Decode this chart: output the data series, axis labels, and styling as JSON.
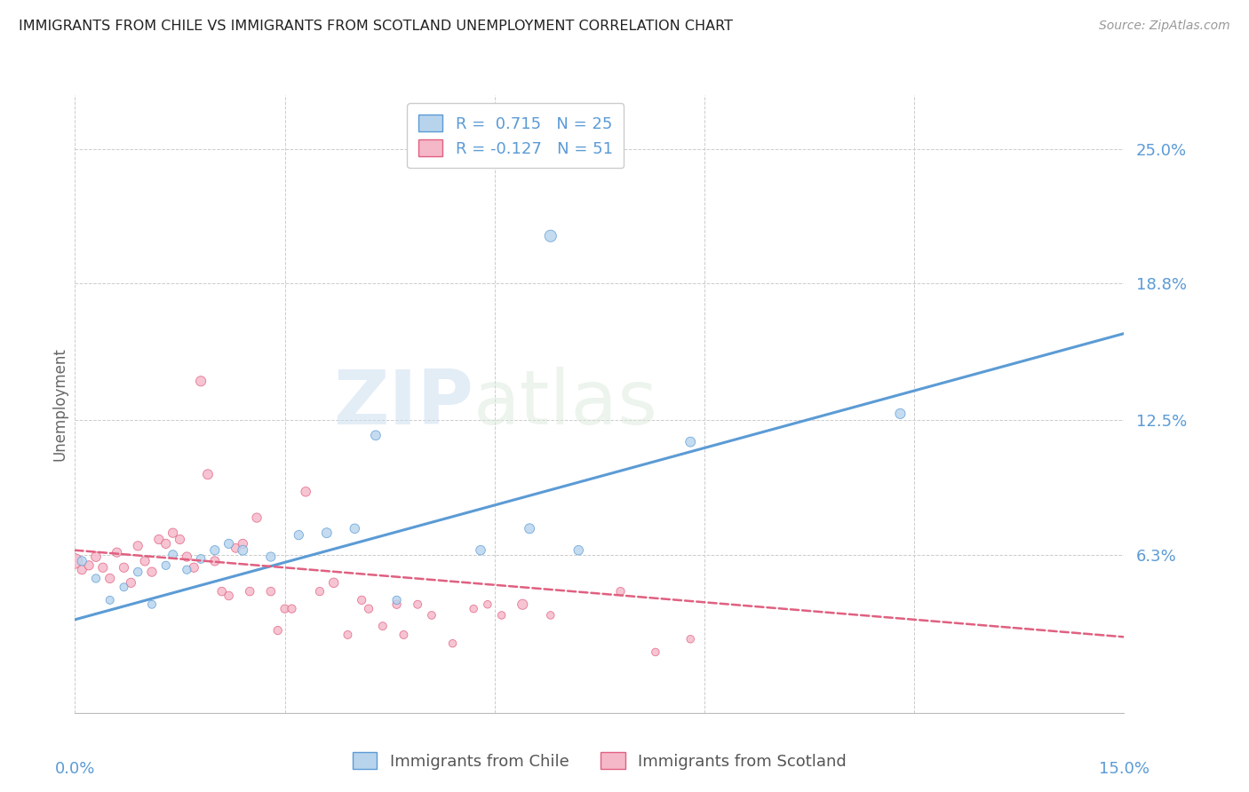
{
  "title": "IMMIGRANTS FROM CHILE VS IMMIGRANTS FROM SCOTLAND UNEMPLOYMENT CORRELATION CHART",
  "source": "Source: ZipAtlas.com",
  "ylabel": "Unemployment",
  "ytick_labels": [
    "25.0%",
    "18.8%",
    "12.5%",
    "6.3%"
  ],
  "ytick_values": [
    0.25,
    0.188,
    0.125,
    0.063
  ],
  "xlim": [
    0.0,
    0.15
  ],
  "ylim": [
    -0.01,
    0.275
  ],
  "chile_R": "0.715",
  "chile_N": "25",
  "scotland_R": "-0.127",
  "scotland_N": "51",
  "chile_color": "#b8d4ed",
  "scotland_color": "#f5b8c8",
  "chile_line_color": "#5b9bd5",
  "scotland_line_color": "#e06080",
  "background_color": "#ffffff",
  "watermark_zip": "ZIP",
  "watermark_atlas": "atlas",
  "chile_line": [
    0.0,
    0.033,
    0.15,
    0.165
  ],
  "scotland_line": [
    0.0,
    0.065,
    0.15,
    0.025
  ],
  "chile_points": [
    [
      0.001,
      0.06
    ],
    [
      0.003,
      0.052
    ],
    [
      0.005,
      0.042
    ],
    [
      0.007,
      0.048
    ],
    [
      0.009,
      0.055
    ],
    [
      0.011,
      0.04
    ],
    [
      0.013,
      0.058
    ],
    [
      0.014,
      0.063
    ],
    [
      0.016,
      0.056
    ],
    [
      0.018,
      0.061
    ],
    [
      0.02,
      0.065
    ],
    [
      0.022,
      0.068
    ],
    [
      0.024,
      0.065
    ],
    [
      0.028,
      0.062
    ],
    [
      0.032,
      0.072
    ],
    [
      0.036,
      0.073
    ],
    [
      0.04,
      0.075
    ],
    [
      0.043,
      0.118
    ],
    [
      0.046,
      0.042
    ],
    [
      0.058,
      0.065
    ],
    [
      0.065,
      0.075
    ],
    [
      0.072,
      0.065
    ],
    [
      0.088,
      0.115
    ],
    [
      0.118,
      0.128
    ],
    [
      0.068,
      0.21
    ]
  ],
  "scotland_points": [
    [
      0.0,
      0.06
    ],
    [
      0.001,
      0.056
    ],
    [
      0.002,
      0.058
    ],
    [
      0.003,
      0.062
    ],
    [
      0.004,
      0.057
    ],
    [
      0.005,
      0.052
    ],
    [
      0.006,
      0.064
    ],
    [
      0.007,
      0.057
    ],
    [
      0.008,
      0.05
    ],
    [
      0.009,
      0.067
    ],
    [
      0.01,
      0.06
    ],
    [
      0.011,
      0.055
    ],
    [
      0.012,
      0.07
    ],
    [
      0.013,
      0.068
    ],
    [
      0.014,
      0.073
    ],
    [
      0.015,
      0.07
    ],
    [
      0.016,
      0.062
    ],
    [
      0.017,
      0.057
    ],
    [
      0.018,
      0.143
    ],
    [
      0.019,
      0.1
    ],
    [
      0.02,
      0.06
    ],
    [
      0.021,
      0.046
    ],
    [
      0.022,
      0.044
    ],
    [
      0.023,
      0.066
    ],
    [
      0.024,
      0.068
    ],
    [
      0.025,
      0.046
    ],
    [
      0.026,
      0.08
    ],
    [
      0.028,
      0.046
    ],
    [
      0.029,
      0.028
    ],
    [
      0.03,
      0.038
    ],
    [
      0.031,
      0.038
    ],
    [
      0.033,
      0.092
    ],
    [
      0.035,
      0.046
    ],
    [
      0.037,
      0.05
    ],
    [
      0.039,
      0.026
    ],
    [
      0.041,
      0.042
    ],
    [
      0.042,
      0.038
    ],
    [
      0.044,
      0.03
    ],
    [
      0.046,
      0.04
    ],
    [
      0.047,
      0.026
    ],
    [
      0.049,
      0.04
    ],
    [
      0.051,
      0.035
    ],
    [
      0.054,
      0.022
    ],
    [
      0.057,
      0.038
    ],
    [
      0.059,
      0.04
    ],
    [
      0.061,
      0.035
    ],
    [
      0.064,
      0.04
    ],
    [
      0.068,
      0.035
    ],
    [
      0.078,
      0.046
    ],
    [
      0.083,
      0.018
    ],
    [
      0.088,
      0.024
    ]
  ],
  "chile_sizes": [
    55,
    45,
    42,
    42,
    48,
    42,
    45,
    50,
    45,
    50,
    55,
    55,
    62,
    55,
    55,
    62,
    58,
    60,
    45,
    58,
    62,
    58,
    62,
    65,
    90
  ],
  "scotland_sizes": [
    140,
    55,
    55,
    60,
    55,
    55,
    55,
    55,
    55,
    55,
    55,
    55,
    55,
    55,
    55,
    55,
    55,
    55,
    65,
    62,
    55,
    48,
    48,
    52,
    55,
    48,
    55,
    48,
    45,
    45,
    45,
    58,
    45,
    58,
    42,
    45,
    45,
    42,
    45,
    42,
    42,
    40,
    38,
    38,
    38,
    38,
    65,
    38,
    45,
    38,
    38
  ]
}
